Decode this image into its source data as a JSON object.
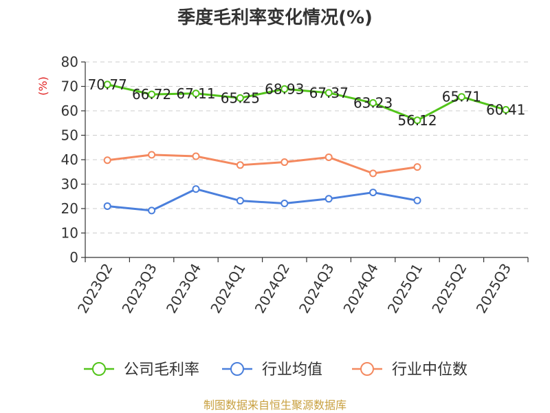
{
  "chart_data": {
    "type": "line",
    "title": "季度毛利率变化情况(%)",
    "ylabel": "(%)",
    "ylim": [
      0,
      80
    ],
    "yticks": [
      0,
      10,
      20,
      30,
      40,
      50,
      60,
      70,
      80
    ],
    "grid": true,
    "legend_position": "bottom",
    "categories": [
      "2023Q2",
      "2023Q3",
      "2023Q4",
      "2024Q1",
      "2024Q2",
      "2024Q3",
      "2024Q4",
      "2025Q1",
      "2025Q2",
      "2025Q3"
    ],
    "series": [
      {
        "name": "公司毛利率",
        "color": "#52c41a",
        "values": [
          70.77,
          66.72,
          67.11,
          65.25,
          68.93,
          67.37,
          63.23,
          56.12,
          65.71,
          60.41
        ],
        "labels": [
          "70.77",
          "66.72",
          "67.11",
          "65.25",
          "68.93",
          "67.37",
          "63.23",
          "56.12",
          "65.71",
          "60.41"
        ],
        "show_labels": true
      },
      {
        "name": "行业均值",
        "color": "#4a7fdc",
        "values": [
          21.0,
          19.2,
          28.0,
          23.2,
          22.1,
          24.0,
          26.6,
          23.3,
          null,
          null
        ],
        "show_labels": false
      },
      {
        "name": "行业中位数",
        "color": "#f4895f",
        "values": [
          39.8,
          42.0,
          41.4,
          37.8,
          39.0,
          41.0,
          34.4,
          37.0,
          null,
          null
        ],
        "show_labels": false
      }
    ],
    "source": "制图数据来自恒生聚源数据库"
  }
}
